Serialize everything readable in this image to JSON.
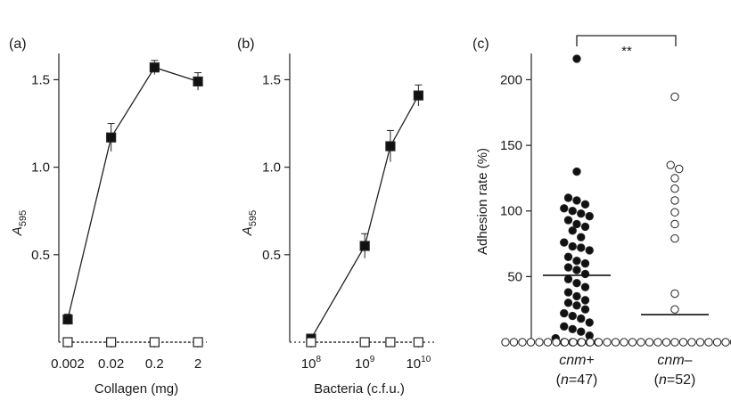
{
  "chart_data": [
    {
      "type": "line",
      "panel_label": "(a)",
      "xlabel": "Collagen (mg)",
      "ylabel": "A",
      "ylabel_sub": "595",
      "x_scale": "log",
      "xlim": [
        0.00125,
        3.2
      ],
      "ylim": [
        0,
        1.65
      ],
      "x_ticks": [
        0.002,
        0.02,
        0.2,
        2
      ],
      "x_tick_labels": [
        "0.002",
        "0.02",
        "0.2",
        "2"
      ],
      "y_ticks": [
        0.5,
        1.0,
        1.5
      ],
      "y_tick_labels": [
        "0.5",
        "1.0",
        "1.5"
      ],
      "series": [
        {
          "marker": "filled-square",
          "x": [
            0.002,
            0.02,
            0.2,
            2
          ],
          "values": [
            0.13,
            1.17,
            1.57,
            1.49
          ],
          "error": [
            0.03,
            0.08,
            0.04,
            0.05
          ]
        },
        {
          "marker": "open-square",
          "x": [
            0.002,
            0.02,
            0.2,
            2
          ],
          "values": [
            0.0,
            0.0,
            0.0,
            0.0
          ],
          "error": [
            0.01,
            0.01,
            0.01,
            0.01
          ]
        }
      ]
    },
    {
      "type": "line",
      "panel_label": "(b)",
      "xlabel": "Bacteria (c.f.u.)",
      "ylabel": "A",
      "ylabel_sub": "595",
      "x_scale": "log",
      "xlim": [
        40000000,
        22000000000
      ],
      "ylim": [
        0,
        1.65
      ],
      "x_ticks": [
        100000000,
        1000000000,
        10000000000
      ],
      "x_tick_labels": [
        {
          "base": "10",
          "exp": "8"
        },
        {
          "base": "10",
          "exp": "9"
        },
        {
          "base": "10",
          "exp": "10"
        }
      ],
      "y_ticks": [
        0.5,
        1.0,
        1.5
      ],
      "y_tick_labels": [
        "0.5",
        "1.0",
        "1.5"
      ],
      "series": [
        {
          "marker": "filled-square",
          "x": [
            100000000,
            1000000000,
            3000000000,
            10000000000
          ],
          "values": [
            0.02,
            0.55,
            1.12,
            1.41
          ],
          "error": [
            0.01,
            0.07,
            0.09,
            0.06
          ]
        },
        {
          "marker": "open-square",
          "x": [
            100000000,
            1000000000,
            3000000000,
            10000000000
          ],
          "values": [
            0.0,
            0.0,
            0.0,
            0.0
          ],
          "error": [
            0.01,
            0.01,
            0.01,
            0.01
          ]
        }
      ]
    },
    {
      "type": "scatter",
      "panel_label": "(c)",
      "ylabel": "Adhesion rate (%)",
      "ylim": [
        0,
        220
      ],
      "y_ticks": [
        50,
        100,
        150,
        200
      ],
      "y_tick_labels": [
        "50",
        "100",
        "150",
        "200"
      ],
      "significance": "**",
      "groups": [
        {
          "name": "cnm+",
          "name_main": "cnm",
          "name_sign": "+",
          "n_label_prefix": "(",
          "n_label_var": "n",
          "n_label_rest": "=47)",
          "marker": "filled-circle",
          "mean": 51,
          "values": [
            216,
            130,
            110,
            108,
            105,
            102,
            100,
            98,
            96,
            93,
            90,
            88,
            85,
            80,
            76,
            73,
            72,
            70,
            65,
            62,
            60,
            57,
            55,
            52,
            48,
            45,
            42,
            38,
            35,
            32,
            30,
            28,
            25,
            22,
            20,
            18,
            15,
            12,
            10,
            8,
            5,
            3,
            0,
            0,
            0,
            0,
            0
          ]
        },
        {
          "name": "cnm–",
          "name_main": "cnm",
          "name_sign": "–",
          "n_label_prefix": "(",
          "n_label_var": "n",
          "n_label_rest": "=52)",
          "marker": "open-circle",
          "mean": 21,
          "values": [
            187,
            135,
            132,
            125,
            117,
            108,
            99,
            90,
            79,
            37,
            25,
            0,
            0,
            0,
            0,
            0,
            0,
            0,
            0,
            0,
            0,
            0,
            0,
            0,
            0,
            0,
            0,
            0,
            0,
            0,
            0,
            0,
            0,
            0,
            0,
            0,
            0,
            0,
            0,
            0,
            0,
            0,
            0,
            0,
            0,
            0,
            0,
            0,
            0,
            0,
            0,
            0
          ]
        }
      ]
    }
  ]
}
